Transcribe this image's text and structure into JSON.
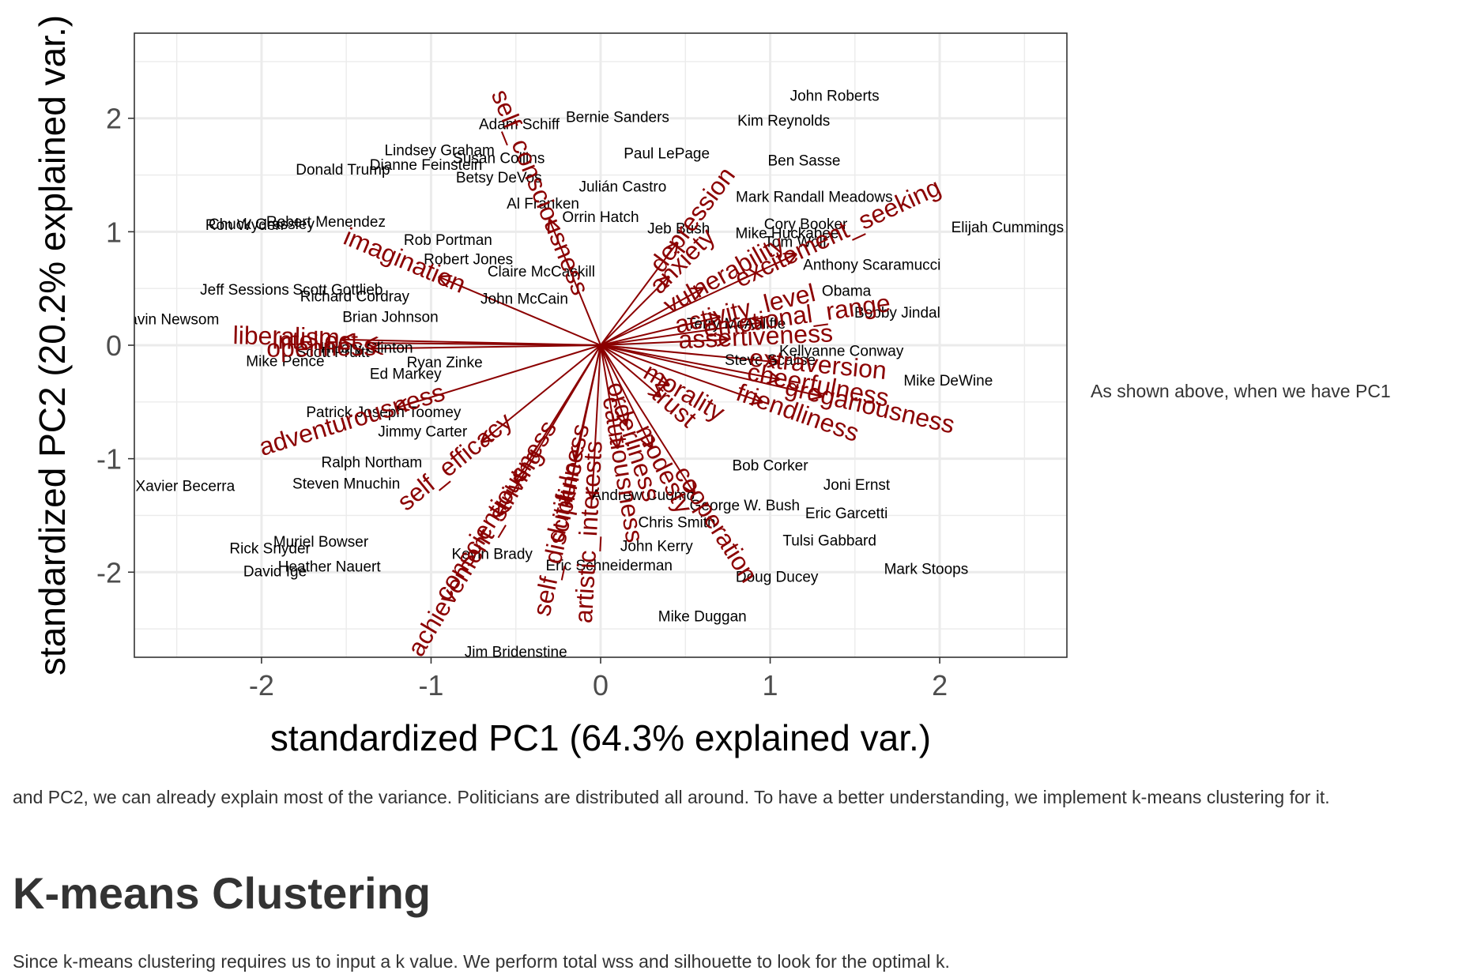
{
  "side_text": "As shown above, when we have PC1",
  "paragraph1": "and PC2, we can already explain most of the variance. Politicians are distributed all around. To have a better understanding, we implement k-means clustering for it.",
  "heading": "K-means Clustering",
  "paragraph2": "Since k-means clustering requires us to input a k value. We perform total wss and silhouette to look for the optimal k.",
  "colors": {
    "panel_border": "#333333",
    "grid": "#ebebeb",
    "arrow": "#8b0000",
    "label": "#000000",
    "axis_text": "#4d4d4d"
  },
  "chart_data": {
    "type": "scatter",
    "subtype": "biplot",
    "xlabel": "standardized PC1 (64.3% explained var.)",
    "ylabel": "standardized PC2 (20.2% explained var.)",
    "xlim": [
      -2.75,
      2.75
    ],
    "ylim": [
      -2.75,
      2.75
    ],
    "xticks": [
      -2,
      -1,
      0,
      1,
      2
    ],
    "yticks": [
      -2,
      -1,
      0,
      1,
      2
    ],
    "xtick_labels": [
      "-2",
      "-1",
      "0",
      "1",
      "2"
    ],
    "ytick_labels": [
      "-2",
      "-1",
      "0",
      "1",
      "2"
    ],
    "grid": true,
    "points": [
      {
        "label": "John Roberts",
        "x": 1.38,
        "y": 2.19
      },
      {
        "label": "Bernie Sanders",
        "x": 0.1,
        "y": 2.0
      },
      {
        "label": "Adam Schiff",
        "x": -0.48,
        "y": 1.94
      },
      {
        "label": "Kim Reynolds",
        "x": 1.08,
        "y": 1.97
      },
      {
        "label": "Lindsey Graham",
        "x": -0.95,
        "y": 1.71
      },
      {
        "label": "Susan Collins",
        "x": -0.6,
        "y": 1.64
      },
      {
        "label": "Paul LePage",
        "x": 0.39,
        "y": 1.68
      },
      {
        "label": "Ben Sasse",
        "x": 1.2,
        "y": 1.62
      },
      {
        "label": "Dianne Feinstein",
        "x": -1.03,
        "y": 1.58
      },
      {
        "label": "Donald Trump",
        "x": -1.52,
        "y": 1.54
      },
      {
        "label": "Betsy DeVos",
        "x": -0.6,
        "y": 1.47
      },
      {
        "label": "Julián Castro",
        "x": 0.13,
        "y": 1.39
      },
      {
        "label": "Mark Randall Meadows",
        "x": 1.26,
        "y": 1.3
      },
      {
        "label": "Al Franken",
        "x": -0.34,
        "y": 1.24
      },
      {
        "label": "Orrin Hatch",
        "x": 0.0,
        "y": 1.12
      },
      {
        "label": "Chuck Grassley",
        "x": -2.0,
        "y": 1.06
      },
      {
        "label": "Robert Menendez",
        "x": -1.62,
        "y": 1.08
      },
      {
        "label": "Ron Wyden",
        "x": -2.1,
        "y": 1.05
      },
      {
        "label": "Cory Booker",
        "x": 1.21,
        "y": 1.06
      },
      {
        "label": "Elijah Cummings",
        "x": 2.4,
        "y": 1.03
      },
      {
        "label": "Mike Huckabee",
        "x": 1.1,
        "y": 0.98
      },
      {
        "label": "Rob Portman",
        "x": -0.9,
        "y": 0.92
      },
      {
        "label": "Tom Wolf",
        "x": 1.15,
        "y": 0.9
      },
      {
        "label": "Jeb Bush",
        "x": 0.46,
        "y": 1.02
      },
      {
        "label": "Robert Jones",
        "x": -0.78,
        "y": 0.75
      },
      {
        "label": "Anthony Scaramucci",
        "x": 1.6,
        "y": 0.7
      },
      {
        "label": "Jeff Sessions",
        "x": -2.1,
        "y": 0.48
      },
      {
        "label": "Scott Gottlieb",
        "x": -1.55,
        "y": 0.48
      },
      {
        "label": "Claire McCaskill",
        "x": -0.35,
        "y": 0.64
      },
      {
        "label": "Richard Cordray",
        "x": -1.45,
        "y": 0.42
      },
      {
        "label": "John McCain",
        "x": -0.45,
        "y": 0.4
      },
      {
        "label": "Obama",
        "x": 1.45,
        "y": 0.47
      },
      {
        "label": "Bobby Jindal",
        "x": 1.75,
        "y": 0.28
      },
      {
        "label": "Gavin Newsom",
        "x": -2.55,
        "y": 0.22
      },
      {
        "label": "Brian Johnson",
        "x": -1.24,
        "y": 0.24
      },
      {
        "label": "Terry McAuliffe",
        "x": 0.8,
        "y": 0.18
      },
      {
        "label": "Hillary Clinton",
        "x": -1.38,
        "y": -0.03
      },
      {
        "label": "Scott Pruitt",
        "x": -1.58,
        "y": -0.07
      },
      {
        "label": "Mike Pence",
        "x": -1.86,
        "y": -0.15
      },
      {
        "label": "Ryan Zinke",
        "x": -0.92,
        "y": -0.16
      },
      {
        "label": "Kellyanne Conway",
        "x": 1.42,
        "y": -0.06
      },
      {
        "label": "Steve Scalise",
        "x": 1.0,
        "y": -0.14
      },
      {
        "label": "Ed Markey",
        "x": -1.15,
        "y": -0.26
      },
      {
        "label": "Mike DeWine",
        "x": 2.05,
        "y": -0.32
      },
      {
        "label": "Patrick Joseph Toomey",
        "x": -1.28,
        "y": -0.6
      },
      {
        "label": "Jimmy Carter",
        "x": -1.05,
        "y": -0.77
      },
      {
        "label": "Ralph Northam",
        "x": -1.35,
        "y": -1.04
      },
      {
        "label": "Bob Corker",
        "x": 1.0,
        "y": -1.07
      },
      {
        "label": "Xavier Becerra",
        "x": -2.45,
        "y": -1.25
      },
      {
        "label": "Steven Mnuchin",
        "x": -1.5,
        "y": -1.23
      },
      {
        "label": "Joni Ernst",
        "x": 1.51,
        "y": -1.24
      },
      {
        "label": "Andrew Cuomo",
        "x": 0.25,
        "y": -1.33
      },
      {
        "label": "George W. Bush",
        "x": 0.85,
        "y": -1.42
      },
      {
        "label": "Eric Garcetti",
        "x": 1.45,
        "y": -1.49
      },
      {
        "label": "Chris Smith",
        "x": 0.45,
        "y": -1.57
      },
      {
        "label": "Tulsi Gabbard",
        "x": 1.35,
        "y": -1.73
      },
      {
        "label": "Muriel Bowser",
        "x": -1.65,
        "y": -1.74
      },
      {
        "label": "Rick Snyder",
        "x": -1.95,
        "y": -1.8
      },
      {
        "label": "John Kerry",
        "x": 0.33,
        "y": -1.78
      },
      {
        "label": "Kevin Brady",
        "x": -0.64,
        "y": -1.85
      },
      {
        "label": "Heather Nauert",
        "x": -1.6,
        "y": -1.96
      },
      {
        "label": "David Ige",
        "x": -1.92,
        "y": -2.0
      },
      {
        "label": "Eric Schneiderman",
        "x": 0.05,
        "y": -1.95
      },
      {
        "label": "Mark Stoops",
        "x": 1.92,
        "y": -1.98
      },
      {
        "label": "Doug Ducey",
        "x": 1.04,
        "y": -2.05
      },
      {
        "label": "Mike Duggan",
        "x": 0.6,
        "y": -2.4
      },
      {
        "label": "Jim Bridenstine",
        "x": -0.5,
        "y": -2.71
      }
    ],
    "loadings": [
      {
        "name": "liberalism",
        "x": -1.52,
        "y": 0.05
      },
      {
        "name": "intellect",
        "x": -1.38,
        "y": 0.02
      },
      {
        "name": "openness",
        "x": -1.35,
        "y": -0.03
      },
      {
        "name": "imagination",
        "x": -0.95,
        "y": 0.6
      },
      {
        "name": "self_consciousness",
        "x": -0.3,
        "y": 1.1
      },
      {
        "name": "adventurousness",
        "x": -1.2,
        "y": -0.55
      },
      {
        "name": "achievement_striving",
        "x": -0.6,
        "y": -1.5
      },
      {
        "name": "self_efficacy",
        "x": -0.7,
        "y": -0.85
      },
      {
        "name": "conscientiousness",
        "x": -0.5,
        "y": -1.2
      },
      {
        "name": "self_discipline",
        "x": -0.2,
        "y": -1.4
      },
      {
        "name": "artistic_interests",
        "x": -0.05,
        "y": -1.35
      },
      {
        "name": "dutifulness",
        "x": -0.15,
        "y": -1.0
      },
      {
        "name": "cautiousness",
        "x": 0.1,
        "y": -0.9
      },
      {
        "name": "orderliness",
        "x": 0.15,
        "y": -0.7
      },
      {
        "name": "modesty",
        "x": 0.3,
        "y": -0.9
      },
      {
        "name": "cooperation",
        "x": 0.55,
        "y": -1.3
      },
      {
        "name": "anxiety",
        "x": 0.4,
        "y": 0.6
      },
      {
        "name": "depression",
        "x": 0.45,
        "y": 0.9
      },
      {
        "name": "vulnerability",
        "x": 0.6,
        "y": 0.5
      },
      {
        "name": "excitement_seeking",
        "x": 1.15,
        "y": 0.8
      },
      {
        "name": "extraversion",
        "x": 1.05,
        "y": -0.15
      },
      {
        "name": "cheerfulness",
        "x": 1.05,
        "y": -0.3
      },
      {
        "name": "gregariousness",
        "x": 1.3,
        "y": -0.45
      },
      {
        "name": "friendliness",
        "x": 0.95,
        "y": -0.5
      },
      {
        "name": "emotional_range",
        "x": 0.95,
        "y": 0.2
      },
      {
        "name": "activity_level",
        "x": 0.7,
        "y": 0.25
      },
      {
        "name": "assertiveness",
        "x": 0.75,
        "y": 0.05
      },
      {
        "name": "trust",
        "x": 0.35,
        "y": -0.45
      },
      {
        "name": "morality",
        "x": 0.4,
        "y": -0.35
      }
    ]
  }
}
